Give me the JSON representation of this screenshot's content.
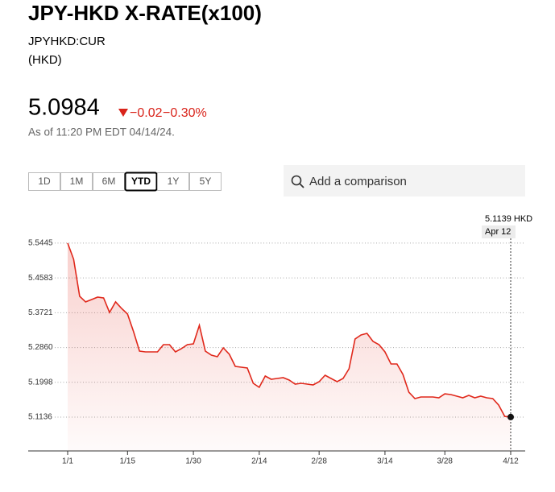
{
  "header": {
    "title": "JPY-HKD X-RATE(x100)",
    "ticker": "JPYHKD:CUR",
    "currency": "(HKD)",
    "price": "5.0984",
    "change": "−0.02",
    "change_percent": "−0.30%",
    "as_of": "As of 11:20 PM EDT 04/14/24."
  },
  "range_buttons": [
    "1D",
    "1M",
    "6M",
    "YTD",
    "1Y",
    "5Y"
  ],
  "selected_range": "YTD",
  "search": {
    "placeholder": "Add a comparison"
  },
  "chart_data": {
    "type": "line",
    "color": "#e0281b",
    "categories": [
      "1/1",
      null,
      null,
      null,
      null,
      null,
      null,
      null,
      null,
      null,
      "1/15",
      null,
      null,
      null,
      null,
      null,
      null,
      null,
      null,
      null,
      null,
      "1/30",
      null,
      null,
      null,
      null,
      null,
      null,
      null,
      null,
      null,
      null,
      "2/14",
      null,
      null,
      null,
      null,
      null,
      null,
      null,
      null,
      null,
      "2/28",
      null,
      null,
      null,
      null,
      null,
      null,
      null,
      null,
      null,
      null,
      "3/14",
      null,
      null,
      null,
      null,
      null,
      null,
      null,
      null,
      null,
      "3/28",
      null,
      null,
      null,
      null,
      null,
      null,
      null,
      null,
      null,
      null,
      "4/12"
    ],
    "values": [
      5.5445,
      5.5046,
      5.4128,
      5.3989,
      5.4048,
      5.4108,
      5.4088,
      5.3729,
      5.3989,
      5.3829,
      5.3689,
      5.3251,
      5.2772,
      5.2752,
      5.2752,
      5.2752,
      5.2931,
      5.2931,
      5.2752,
      5.2832,
      5.2931,
      5.2951,
      5.341,
      5.2772,
      5.2672,
      5.2632,
      5.2852,
      5.2692,
      5.2393,
      5.2373,
      5.2353,
      5.1974,
      5.1874,
      5.2153,
      5.2074,
      5.2093,
      5.2113,
      5.2054,
      5.1954,
      5.1974,
      5.1954,
      5.1934,
      5.2014,
      5.2173,
      5.2093,
      5.2014,
      5.2093,
      5.2333,
      5.3071,
      5.3171,
      5.3211,
      5.3011,
      5.2931,
      5.2752,
      5.2452,
      5.2452,
      5.2193,
      5.1754,
      5.1595,
      5.1635,
      5.1635,
      5.1635,
      5.1615,
      5.1714,
      5.1695,
      5.1655,
      5.1615,
      5.1675,
      5.1615,
      5.1655,
      5.1615,
      5.1595,
      5.1435,
      5.1156,
      5.1139
    ],
    "ylim": [
      5.03,
      5.62
    ],
    "yticks": [
      5.1136,
      5.1998,
      {
        "value": 5.286,
        "label": "5.2860"
      },
      5.3721,
      5.4583,
      5.5445
    ],
    "grid": true,
    "tooltip": {
      "label": "5.1139 HKD",
      "date": "Apr 12"
    }
  }
}
